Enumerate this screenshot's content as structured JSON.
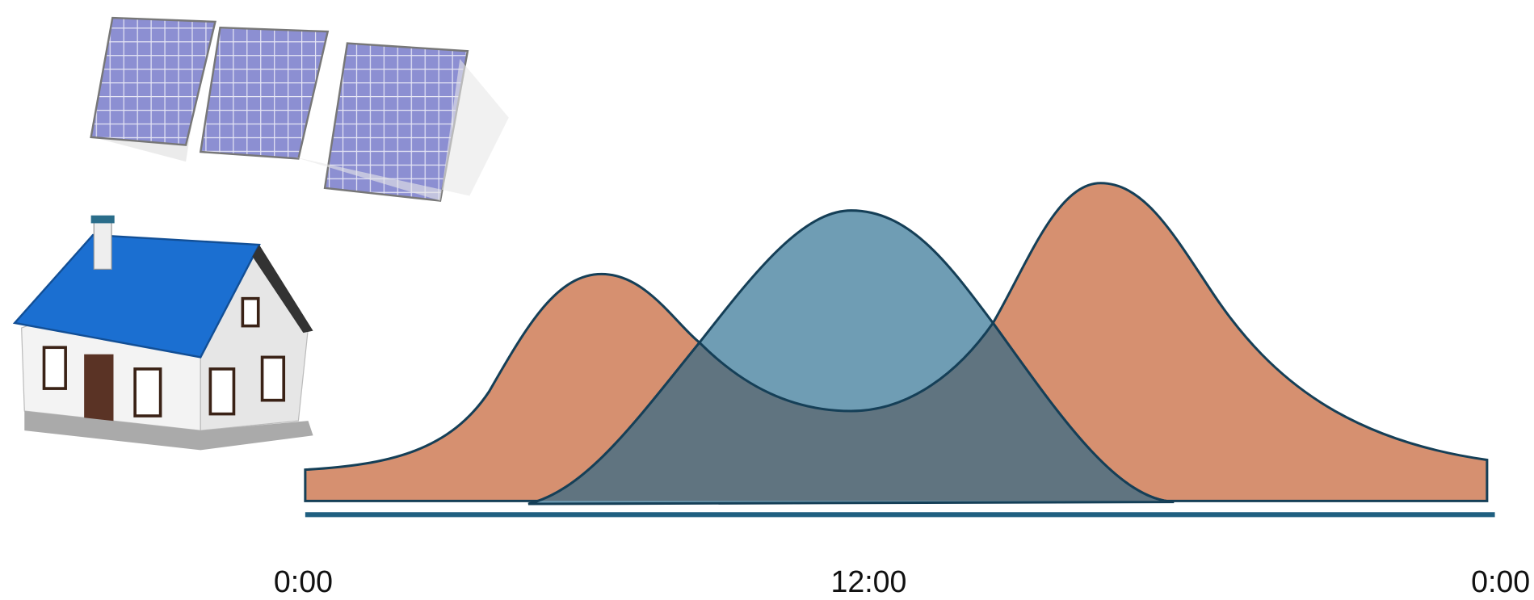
{
  "axis": {
    "labels": [
      "0:00",
      "12:00",
      "0:00"
    ]
  }
}
